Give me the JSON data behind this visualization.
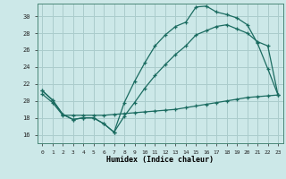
{
  "background_color": "#cce8e8",
  "grid_color": "#aacccc",
  "line_color": "#1a6b60",
  "xlabel": "Humidex (Indice chaleur)",
  "xlim": [
    -0.5,
    23.5
  ],
  "ylim": [
    15.0,
    31.5
  ],
  "yticks": [
    16,
    18,
    20,
    22,
    24,
    26,
    28,
    30
  ],
  "xticks": [
    0,
    1,
    2,
    3,
    4,
    5,
    6,
    7,
    8,
    9,
    10,
    11,
    12,
    13,
    14,
    15,
    16,
    17,
    18,
    19,
    20,
    21,
    22,
    23
  ],
  "line1_x": [
    0,
    1,
    2,
    3,
    4,
    5,
    6,
    7,
    8,
    9,
    10,
    11,
    12,
    13,
    14,
    15,
    16,
    17,
    18,
    19,
    20,
    21,
    22,
    23
  ],
  "line1_y": [
    21.2,
    20.1,
    18.4,
    17.8,
    18.0,
    18.0,
    17.3,
    16.3,
    19.8,
    22.3,
    24.5,
    26.5,
    27.8,
    28.8,
    29.3,
    31.1,
    31.2,
    30.5,
    30.2,
    29.8,
    29.0,
    26.8,
    23.8,
    20.7
  ],
  "line2_x": [
    0,
    1,
    2,
    3,
    4,
    5,
    6,
    7,
    8,
    9,
    10,
    11,
    12,
    13,
    14,
    15,
    16,
    17,
    18,
    19,
    20,
    21,
    22,
    23
  ],
  "line2_y": [
    21.2,
    20.1,
    18.4,
    17.8,
    18.0,
    18.0,
    17.3,
    16.3,
    18.2,
    19.8,
    21.5,
    23.0,
    24.3,
    25.5,
    26.5,
    27.8,
    28.3,
    28.8,
    29.0,
    28.5,
    28.0,
    27.0,
    26.5,
    20.7
  ],
  "line3_x": [
    0,
    1,
    2,
    3,
    4,
    5,
    6,
    7,
    8,
    9,
    10,
    11,
    12,
    13,
    14,
    15,
    16,
    17,
    18,
    19,
    20,
    21,
    22,
    23
  ],
  "line3_y": [
    20.8,
    19.8,
    18.3,
    18.3,
    18.3,
    18.3,
    18.3,
    18.4,
    18.5,
    18.6,
    18.7,
    18.8,
    18.9,
    19.0,
    19.2,
    19.4,
    19.6,
    19.8,
    20.0,
    20.2,
    20.4,
    20.5,
    20.6,
    20.7
  ]
}
